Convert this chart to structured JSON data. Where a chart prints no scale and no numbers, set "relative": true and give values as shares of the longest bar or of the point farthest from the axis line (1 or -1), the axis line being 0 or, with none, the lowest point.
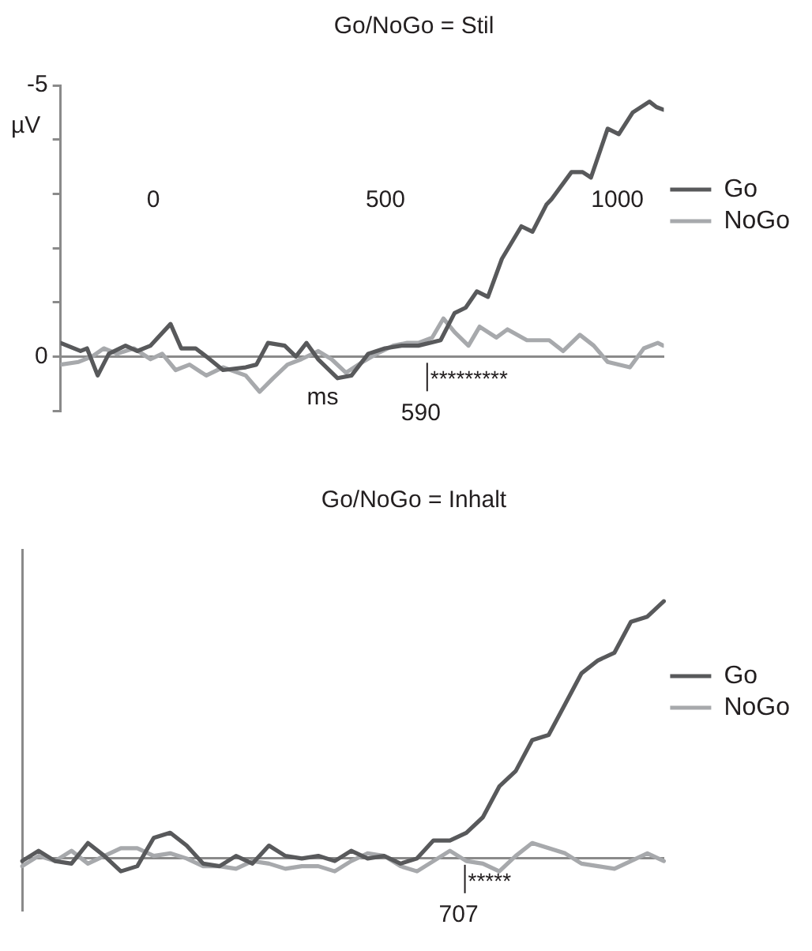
{
  "chart_data": [
    {
      "type": "line",
      "title": "Go/NoGo = Stil",
      "xlabel": "ms",
      "ylabel": "µV",
      "xlim": [
        -200,
        1100
      ],
      "xticks": [
        0,
        500,
        1000
      ],
      "ylim": [
        1,
        -5
      ],
      "yticks": [
        -5,
        {
          "value": -4,
          "label": null
        },
        {
          "value": -3,
          "label": null
        },
        {
          "value": -2,
          "label": null
        },
        {
          "value": -1,
          "label": null
        },
        0,
        {
          "value": 1,
          "label": null
        }
      ],
      "legend": "right",
      "marker": "none",
      "line_style": "solid",
      "ref_lines": [
        {
          "axis": "x",
          "value": 590,
          "label": "590"
        }
      ],
      "annotations": [
        "*********"
      ],
      "series": [
        {
          "name": "Go",
          "color": "#58595b",
          "x": [
            -200,
            -157,
            -143,
            -120,
            -96,
            -60,
            -35,
            -6,
            37,
            60,
            91,
            114,
            150,
            199,
            222,
            247,
            283,
            307,
            330,
            355,
            397,
            427,
            463,
            499,
            535,
            571,
            619,
            649,
            673,
            697,
            721,
            751,
            793,
            817,
            847,
            858,
            901,
            925,
            943,
            979,
            1003,
            1033,
            1069,
            1084,
            1099
          ],
          "values": [
            -0.25,
            -0.1,
            -0.15,
            0.35,
            -0.05,
            -0.2,
            -0.1,
            -0.2,
            -0.6,
            -0.15,
            -0.15,
            0,
            0.25,
            0.2,
            0.15,
            -0.25,
            -0.2,
            0,
            -0.25,
            0.05,
            0.4,
            0.35,
            -0.05,
            -0.15,
            -0.2,
            -0.2,
            -0.3,
            -0.8,
            -0.9,
            -1.2,
            -1.1,
            -1.8,
            -2.4,
            -2.3,
            -2.8,
            -2.9,
            -3.4,
            -3.4,
            -3.3,
            -4.2,
            -4.1,
            -4.5,
            -4.7,
            -4.6,
            -4.55
          ]
        },
        {
          "name": "NoGo",
          "color": "#a7a9ac",
          "x": [
            -200,
            -161,
            -132,
            -107,
            -78,
            -42,
            -6,
            19,
            48,
            78,
            114,
            150,
            199,
            229,
            258,
            289,
            319,
            355,
            384,
            415,
            451,
            481,
            517,
            547,
            571,
            601,
            625,
            649,
            679,
            703,
            739,
            763,
            805,
            853,
            883,
            919,
            949,
            979,
            1027,
            1057,
            1087,
            1099
          ],
          "values": [
            0.15,
            0.1,
            0,
            -0.15,
            -0.05,
            -0.15,
            0.05,
            -0.05,
            0.25,
            0.15,
            0.35,
            0.2,
            0.35,
            0.65,
            0.4,
            0.15,
            0.05,
            -0.1,
            0.05,
            0.3,
            0.1,
            -0.05,
            -0.2,
            -0.25,
            -0.25,
            -0.35,
            -0.7,
            -0.45,
            -0.2,
            -0.55,
            -0.35,
            -0.5,
            -0.3,
            -0.3,
            -0.1,
            -0.4,
            -0.2,
            0.1,
            0.2,
            -0.15,
            -0.25,
            -0.2
          ]
        }
      ]
    },
    {
      "type": "line",
      "title": "Go/NoGo = Inhalt",
      "relative": true,
      "categories": [
        null,
        null,
        null,
        null,
        null,
        null,
        null,
        null,
        null,
        null,
        null,
        null,
        null,
        null,
        null,
        null,
        null,
        null,
        null,
        null,
        null,
        null,
        null,
        null,
        null,
        null,
        null,
        null,
        null,
        null,
        null,
        null,
        null,
        null,
        null,
        null,
        null,
        null,
        null,
        null
      ],
      "legend": "right",
      "marker": "none",
      "line_style": "solid",
      "annotations": [
        "*****",
        "707"
      ],
      "series": [
        {
          "name": "Go",
          "color": "#58595b",
          "values": [
            -0.01,
            0.03,
            -0.01,
            -0.02,
            0.06,
            0.01,
            -0.05,
            -0.03,
            0.08,
            0.1,
            0.05,
            -0.02,
            -0.03,
            0.01,
            -0.02,
            0.05,
            0.01,
            0,
            0.01,
            -0.01,
            0.03,
            0,
            0.01,
            -0.02,
            0,
            0.07,
            0.07,
            0.1,
            0.16,
            0.28,
            0.34,
            0.46,
            0.48,
            0.6,
            0.72,
            0.77,
            0.8,
            0.92,
            0.94,
            1
          ]
        },
        {
          "name": "NoGo",
          "color": "#a7a9ac",
          "values": [
            -0.03,
            0.01,
            -0.01,
            0.03,
            -0.02,
            0.01,
            0.04,
            0.04,
            0.01,
            0.02,
            0,
            -0.03,
            -0.03,
            -0.04,
            -0.01,
            -0.02,
            -0.04,
            -0.03,
            -0.03,
            -0.05,
            -0.01,
            0.02,
            0.01,
            -0.03,
            -0.05,
            -0.01,
            0.03,
            -0.01,
            -0.02,
            -0.05,
            0.01,
            0.06,
            0.04,
            0.02,
            -0.02,
            -0.03,
            -0.04,
            -0.01,
            0.02,
            -0.01
          ]
        }
      ]
    }
  ]
}
